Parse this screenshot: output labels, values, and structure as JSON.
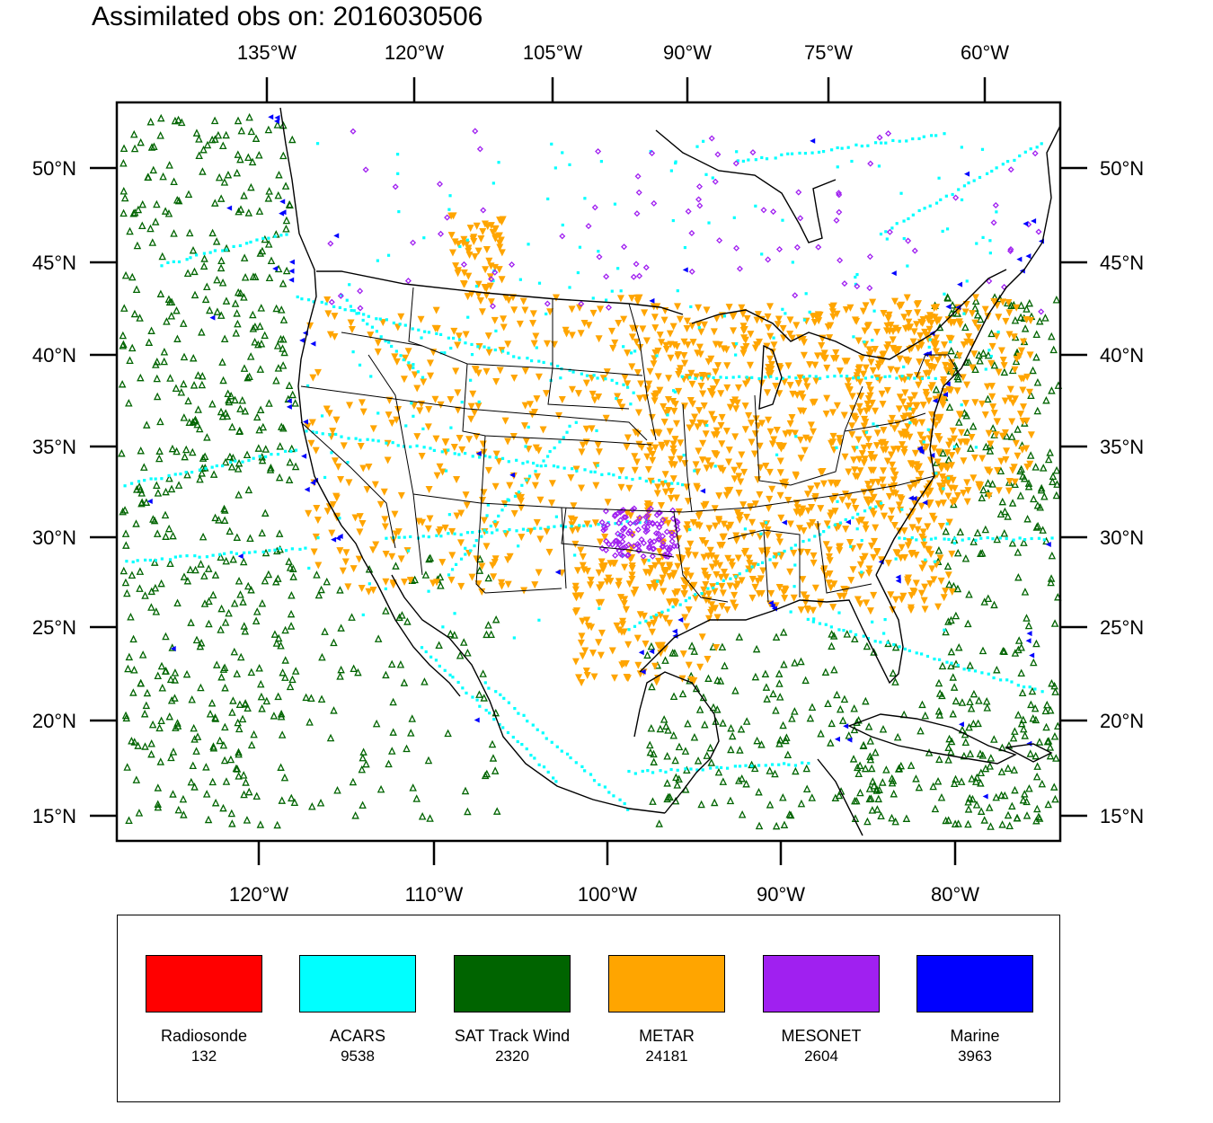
{
  "title": "Assimilated obs on: 2016030506",
  "axes": {
    "top_lon_labels": [
      "135°W",
      "120°W",
      "105°W",
      "90°W",
      "75°W",
      "60°W"
    ],
    "bottom_lon_labels": [
      "120°W",
      "110°W",
      "100°W",
      "90°W",
      "80°W"
    ],
    "left_lat_labels": [
      "50°N",
      "45°N",
      "40°N",
      "35°N",
      "30°N",
      "25°N",
      "20°N",
      "15°N"
    ],
    "right_lat_labels": [
      "50°N",
      "45°N",
      "40°N",
      "35°N",
      "30°N",
      "25°N",
      "20°N",
      "15°N"
    ]
  },
  "legend": [
    {
      "name": "Radiosonde",
      "count": "132",
      "color": "#ff0000"
    },
    {
      "name": "ACARS",
      "count": "9538",
      "color": "#00ffff"
    },
    {
      "name": "SAT Track Wind",
      "count": "2320",
      "color": "#006400"
    },
    {
      "name": "METAR",
      "count": "24181",
      "color": "#ffa500"
    },
    {
      "name": "MESONET",
      "count": "2604",
      "color": "#a020f0"
    },
    {
      "name": "Marine",
      "count": "3963",
      "color": "#0000ff"
    }
  ],
  "marker_colors": {
    "satwind": "#006400",
    "acars": "#00ffff",
    "metar": "#ffa500",
    "mesonet": "#a020f0",
    "marine": "#0000ff"
  }
}
